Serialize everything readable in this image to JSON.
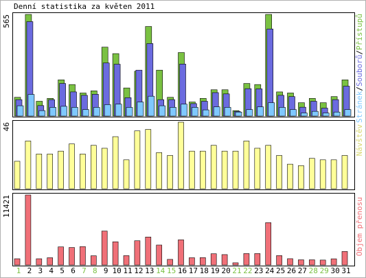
{
  "title": "Denní statistika za květen 2011",
  "colors": {
    "hits": "#7ac142",
    "files": "#6b6bdf",
    "pages": "#7fc8ff",
    "visits": "#ffff99",
    "kbytes": "#f07078",
    "weekend_label": "#7ac142",
    "weekday_label": "#000000"
  },
  "chart_data": [
    {
      "type": "bar",
      "name": "hits-files-pages",
      "ymax_label": "565",
      "right_label_parts": [
        "Stránek",
        "/",
        "Souborů",
        "/",
        "Přístupů"
      ],
      "ylim": [
        0,
        565
      ],
      "series": [
        {
          "name": "Přístupů",
          "values": [
            104,
            565,
            82,
            98,
            201,
            175,
            128,
            140,
            383,
            347,
            156,
            249,
            498,
            255,
            104,
            353,
            78,
            98,
            146,
            146,
            30,
            181,
            175,
            565,
            134,
            128,
            74,
            98,
            74,
            108,
            201
          ]
        },
        {
          "name": "Souborů",
          "values": [
            91,
            525,
            58,
            91,
            181,
            134,
            115,
            121,
            295,
            288,
            102,
            255,
            403,
            91,
            91,
            289,
            69,
            82,
            130,
            123,
            26,
            152,
            151,
            484,
            115,
            108,
            49,
            82,
            44,
            91,
            166
          ]
        },
        {
          "name": "Stránek",
          "values": [
            57,
            120,
            30,
            48,
            54,
            48,
            36,
            48,
            63,
            66,
            48,
            78,
            110,
            57,
            48,
            66,
            48,
            34,
            51,
            48,
            22,
            36,
            51,
            74,
            48,
            36,
            17,
            26,
            17,
            22,
            36
          ]
        }
      ],
      "categories": [
        "1",
        "2",
        "3",
        "4",
        "5",
        "6",
        "7",
        "8",
        "9",
        "10",
        "11",
        "12",
        "13",
        "14",
        "15",
        "16",
        "17",
        "18",
        "19",
        "20",
        "21",
        "22",
        "23",
        "24",
        "25",
        "26",
        "27",
        "28",
        "29",
        "30",
        "31"
      ]
    },
    {
      "type": "bar",
      "name": "visits",
      "ymax_label": "46",
      "right_label": "Návštěv",
      "ylim": [
        0,
        46
      ],
      "series": [
        {
          "name": "Návštěv",
          "values": [
            19,
            33,
            24,
            24,
            26,
            31,
            24,
            30,
            28,
            36,
            20,
            40,
            41,
            25,
            23,
            46,
            26,
            26,
            30,
            26,
            26,
            33,
            28,
            30,
            23,
            17,
            16,
            21,
            20,
            20,
            23
          ]
        }
      ]
    },
    {
      "type": "bar",
      "name": "kbytes",
      "ymax_label": "11421",
      "right_label": "Objem přenosu",
      "ylim": [
        0,
        11421
      ],
      "series": [
        {
          "name": "Objem přenosu",
          "values": [
            1010,
            11421,
            1010,
            1180,
            2950,
            2850,
            3000,
            1500,
            5530,
            3780,
            1520,
            3950,
            4560,
            3250,
            910,
            4100,
            1180,
            1200,
            1830,
            1690,
            350,
            1860,
            1860,
            6900,
            1530,
            1020,
            840,
            840,
            800,
            1000,
            2200
          ]
        }
      ]
    }
  ],
  "days": [
    "1",
    "2",
    "3",
    "4",
    "5",
    "6",
    "7",
    "8",
    "9",
    "10",
    "11",
    "12",
    "13",
    "14",
    "15",
    "16",
    "17",
    "18",
    "19",
    "20",
    "21",
    "22",
    "23",
    "24",
    "25",
    "26",
    "27",
    "28",
    "29",
    "30",
    "31"
  ],
  "weekend_days": [
    1,
    7,
    8,
    14,
    15,
    21,
    22,
    28,
    29
  ]
}
